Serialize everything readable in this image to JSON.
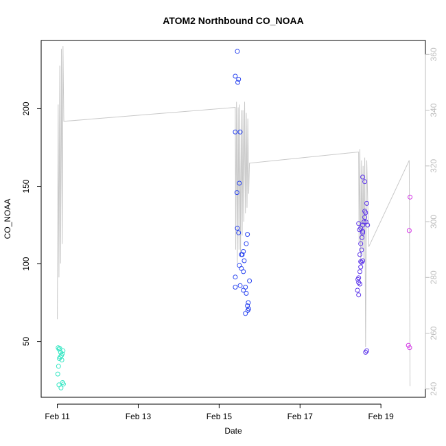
{
  "chart_data": {
    "type": "scatter",
    "title": "ATOM2 Northbound CO_NOAA",
    "xlabel": "Date",
    "ylabel": "CO_NOAA",
    "x_ticks": [
      "Feb 11",
      "Feb 13",
      "Feb 15",
      "Feb 17",
      "Feb 19"
    ],
    "x_tick_values": [
      11,
      13,
      15,
      17,
      19
    ],
    "xlim": [
      10.6,
      20.1
    ],
    "ylim": [
      14,
      244
    ],
    "y_ticks": [
      50,
      100,
      150,
      200
    ],
    "y2lim": [
      237,
      365
    ],
    "y2_ticks": [
      240,
      260,
      280,
      300,
      320,
      340,
      360
    ],
    "grid": false,
    "colors": {
      "axis": "#000000",
      "line": "#c8c8c8",
      "right_axis": "#bdbdbd"
    },
    "series": [
      {
        "color": "#33e6c3",
        "points": [
          [
            11.02,
            46
          ],
          [
            11.04,
            45
          ],
          [
            11.06,
            45.5
          ],
          [
            11.08,
            43
          ],
          [
            11.1,
            41
          ],
          [
            11.05,
            39
          ],
          [
            11.12,
            42
          ],
          [
            11.14,
            44
          ],
          [
            11.03,
            34
          ],
          [
            11.01,
            29
          ],
          [
            11.04,
            22
          ],
          [
            11.09,
            20
          ],
          [
            11.13,
            23.5
          ],
          [
            11.15,
            22.5
          ],
          [
            11.07,
            40
          ],
          [
            11.11,
            38
          ]
        ]
      },
      {
        "color": "#2a45f0",
        "points": [
          [
            15.45,
            237
          ],
          [
            15.4,
            221
          ],
          [
            15.48,
            219
          ],
          [
            15.46,
            217
          ],
          [
            15.4,
            185
          ],
          [
            15.52,
            185
          ],
          [
            15.5,
            152
          ],
          [
            15.44,
            146
          ],
          [
            15.45,
            123
          ],
          [
            15.48,
            120
          ],
          [
            15.7,
            119
          ],
          [
            15.67,
            113
          ],
          [
            15.6,
            108
          ],
          [
            15.55,
            106
          ],
          [
            15.57,
            106
          ],
          [
            15.62,
            102
          ],
          [
            15.5,
            99
          ],
          [
            15.55,
            97
          ],
          [
            15.6,
            95
          ],
          [
            15.4,
            91.5
          ],
          [
            15.75,
            89
          ],
          [
            15.52,
            86
          ],
          [
            15.4,
            85
          ],
          [
            15.65,
            85
          ],
          [
            15.6,
            83
          ],
          [
            15.67,
            81
          ],
          [
            15.72,
            75
          ],
          [
            15.7,
            73
          ],
          [
            15.73,
            71
          ],
          [
            15.71,
            70
          ],
          [
            15.65,
            68
          ]
        ]
      },
      {
        "color": "#5a32ea",
        "points": [
          [
            18.55,
            156
          ],
          [
            18.6,
            153
          ],
          [
            18.6,
            134
          ],
          [
            18.62,
            133
          ],
          [
            18.65,
            139
          ],
          [
            18.6,
            130
          ],
          [
            18.58,
            127
          ],
          [
            18.63,
            127
          ],
          [
            18.45,
            126
          ],
          [
            18.55,
            125
          ],
          [
            18.67,
            125
          ],
          [
            18.5,
            123
          ],
          [
            18.55,
            120
          ],
          [
            18.53,
            117
          ],
          [
            18.5,
            113
          ],
          [
            18.52,
            109
          ],
          [
            18.48,
            106
          ],
          [
            18.55,
            102
          ],
          [
            18.52,
            101
          ],
          [
            18.5,
            98
          ],
          [
            18.48,
            95
          ],
          [
            18.45,
            91
          ],
          [
            18.43,
            90
          ],
          [
            18.45,
            88
          ],
          [
            18.48,
            87
          ],
          [
            18.42,
            83
          ],
          [
            18.45,
            80
          ],
          [
            18.62,
            43
          ],
          [
            18.65,
            44
          ],
          [
            18.5,
            101.5
          ],
          [
            18.55,
            121
          ],
          [
            18.47,
            122
          ]
        ]
      },
      {
        "color": "#d32ee6",
        "points": [
          [
            19.72,
            143
          ],
          [
            19.7,
            121.5
          ],
          [
            19.68,
            47.5
          ],
          [
            19.71,
            46
          ]
        ]
      }
    ],
    "line_series": {
      "axis": "right",
      "color": "#c8c8c8",
      "points": [
        [
          11.0,
          265
        ],
        [
          11.02,
          342
        ],
        [
          11.04,
          280
        ],
        [
          11.06,
          356
        ],
        [
          11.08,
          285
        ],
        [
          11.1,
          362
        ],
        [
          11.12,
          292
        ],
        [
          11.14,
          363
        ],
        [
          11.16,
          336
        ],
        [
          15.4,
          341
        ],
        [
          15.41,
          290
        ],
        [
          15.43,
          343
        ],
        [
          15.45,
          285
        ],
        [
          15.47,
          341
        ],
        [
          15.49,
          290
        ],
        [
          15.51,
          342
        ],
        [
          15.53,
          288
        ],
        [
          15.55,
          340
        ],
        [
          15.57,
          295
        ],
        [
          15.59,
          340
        ],
        [
          15.61,
          300
        ],
        [
          15.63,
          343
        ],
        [
          15.65,
          303
        ],
        [
          15.67,
          339
        ],
        [
          15.69,
          305
        ],
        [
          15.71,
          337
        ],
        [
          15.73,
          310
        ],
        [
          15.75,
          321
        ],
        [
          18.45,
          325
        ],
        [
          18.46,
          292
        ],
        [
          18.48,
          326
        ],
        [
          18.5,
          285
        ],
        [
          18.52,
          322
        ],
        [
          18.54,
          290
        ],
        [
          18.56,
          320
        ],
        [
          18.58,
          286
        ],
        [
          18.6,
          323
        ],
        [
          18.62,
          255
        ],
        [
          18.65,
          322
        ],
        [
          18.7,
          291
        ],
        [
          19.7,
          322
        ],
        [
          19.72,
          241
        ]
      ]
    }
  }
}
